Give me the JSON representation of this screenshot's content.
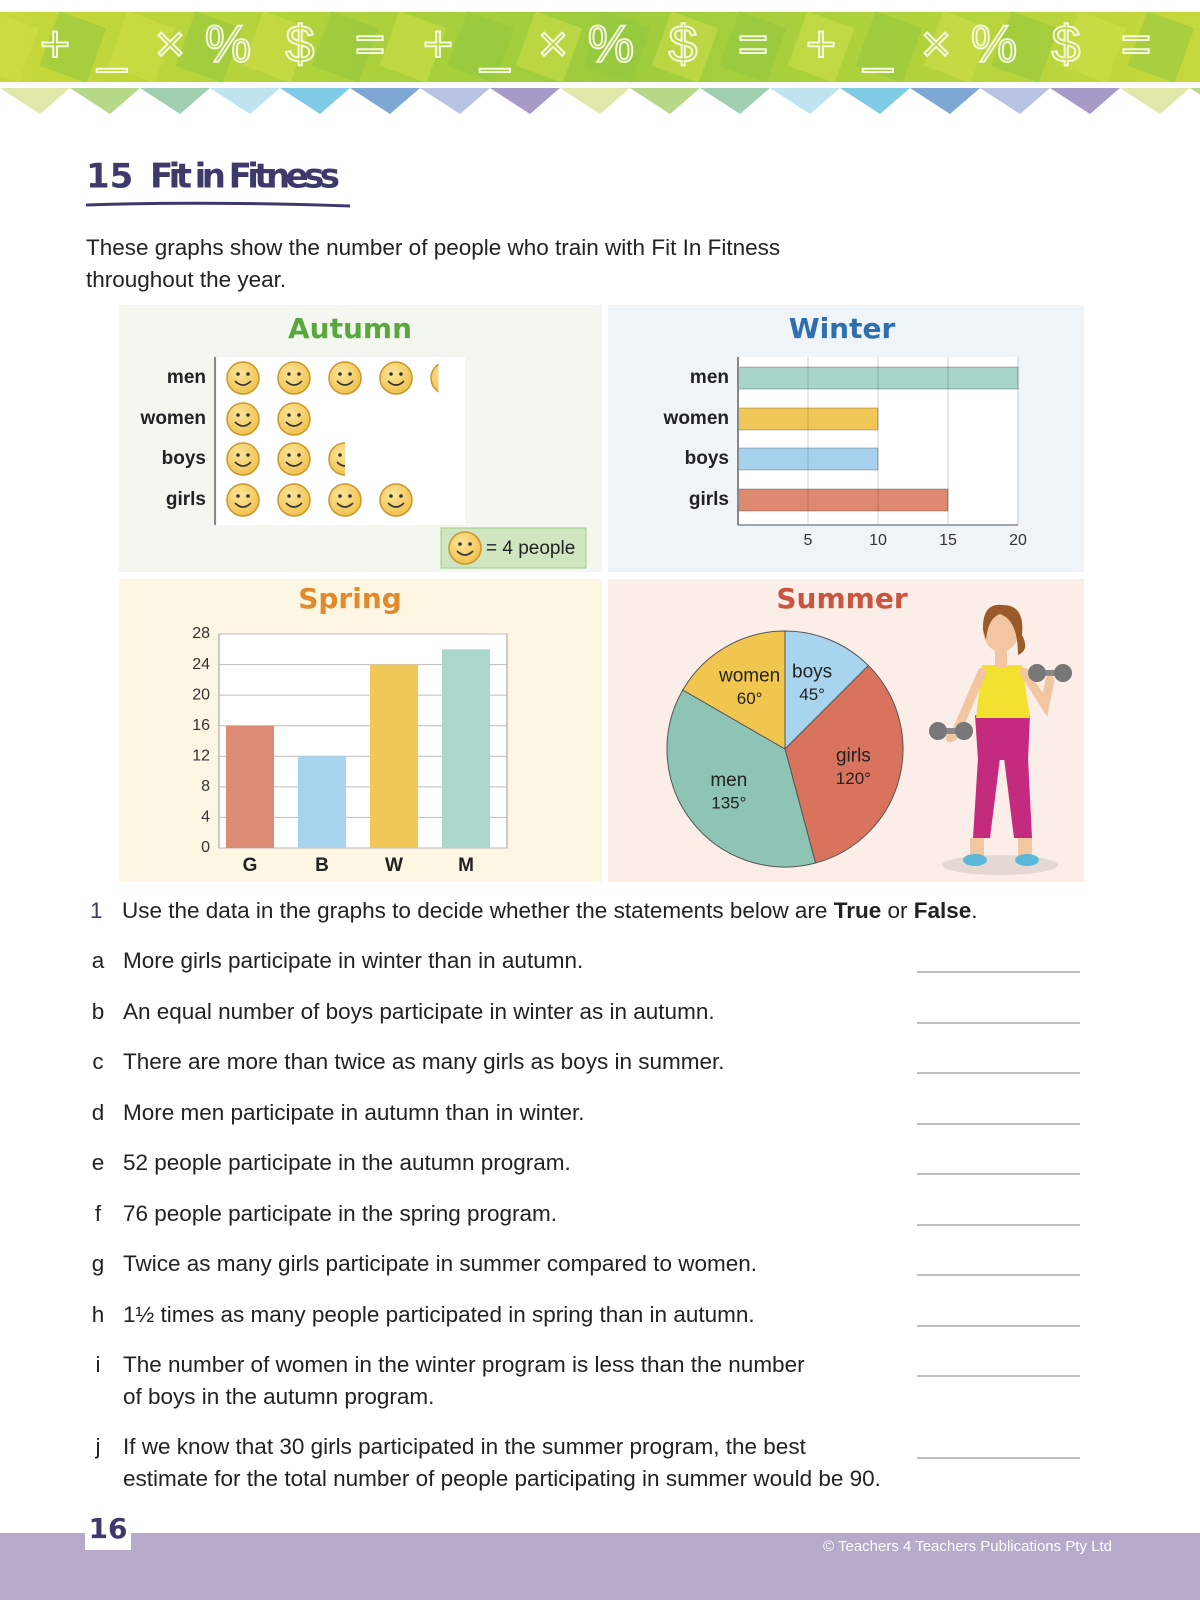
{
  "banner_symbols": [
    "+",
    "_",
    "×",
    "%",
    "$",
    "="
  ],
  "header": {
    "number": "15",
    "title": "Fit in Fitness"
  },
  "intro": [
    "These graphs show the number of people who train with Fit In Fitness",
    "throughout the year."
  ],
  "chart_data": [
    {
      "type": "pictogram",
      "title": "Autumn",
      "title_color": "#5aa83c",
      "categories": [
        "men",
        "women",
        "boys",
        "girls"
      ],
      "values": [
        17,
        8,
        10,
        16
      ],
      "key": {
        "value": 4,
        "label": "= 4 people"
      }
    },
    {
      "type": "hbar",
      "title": "Winter",
      "title_color": "#2f6fb0",
      "categories": [
        "men",
        "women",
        "boys",
        "girls"
      ],
      "values": [
        20,
        10,
        10,
        15
      ],
      "colors": [
        "#a9d6cb",
        "#f1c858",
        "#a6d2ee",
        "#de8a72"
      ],
      "xlim": [
        0,
        20
      ],
      "xticks": [
        5,
        10,
        15,
        20
      ],
      "grid": true
    },
    {
      "type": "bar",
      "title": "Spring",
      "title_color": "#e08a2c",
      "categories": [
        "G",
        "B",
        "W",
        "M"
      ],
      "values": [
        16,
        12,
        24,
        26
      ],
      "colors": [
        "#dc8c74",
        "#a8d3ee",
        "#f1c858",
        "#acd7cd"
      ],
      "ylim": [
        0,
        28
      ],
      "yticks": [
        0,
        4,
        8,
        12,
        16,
        20,
        24,
        28
      ],
      "grid": true
    },
    {
      "type": "pie",
      "title": "Summer",
      "title_color": "#c9553e",
      "categories": [
        "boys",
        "girls",
        "men",
        "women"
      ],
      "values": [
        45,
        120,
        135,
        60
      ],
      "value_labels": [
        "45°",
        "120°",
        "135°",
        "60°"
      ],
      "colors": [
        "#a8d4ee",
        "#d9735e",
        "#8ec4b4",
        "#f0c64f"
      ]
    }
  ],
  "questions": {
    "number": "1",
    "prompt": [
      "Use the data in the graphs to decide whether the statements below are ",
      "True",
      " or ",
      "False",
      "."
    ],
    "items": [
      {
        "letter": "a",
        "lines": [
          "More girls participate in winter than in autumn."
        ]
      },
      {
        "letter": "b",
        "lines": [
          "An equal number of boys participate in winter as in autumn."
        ]
      },
      {
        "letter": "c",
        "lines": [
          "There are more than twice as many girls as boys in summer."
        ]
      },
      {
        "letter": "d",
        "lines": [
          "More men participate in autumn than in winter."
        ]
      },
      {
        "letter": "e",
        "lines": [
          "52 people participate in the autumn program."
        ]
      },
      {
        "letter": "f",
        "lines": [
          "76 people participate in the spring program."
        ]
      },
      {
        "letter": "g",
        "lines": [
          "Twice as many girls participate in summer compared to women."
        ]
      },
      {
        "letter": "h",
        "lines": [
          "1½ times as many people participated in spring than in autumn."
        ]
      },
      {
        "letter": "i",
        "lines": [
          "The number of women in the winter program is less than the number",
          "of boys in the autumn program."
        ]
      },
      {
        "letter": "j",
        "lines": [
          "If we know that 30 girls participated in the summer program, the best",
          "estimate for the total number of people participating in summer would be 90."
        ]
      }
    ]
  },
  "footer": {
    "page": "16",
    "copyright": "©  Teachers 4 Teachers Publications Pty Ltd"
  }
}
